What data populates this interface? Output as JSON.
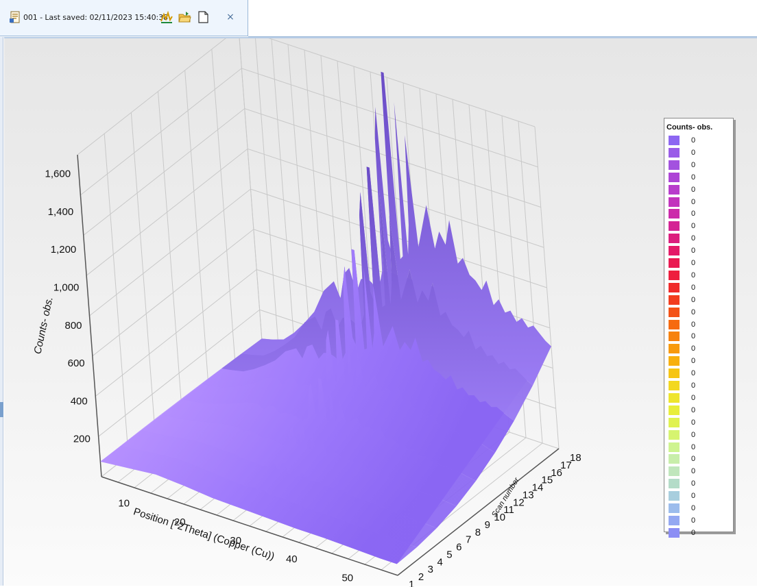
{
  "tab": {
    "title": "001 - Last saved: 02/11/2023 15:40:38",
    "close_label": "×",
    "icons": [
      "document-icon",
      "chart-icon",
      "folder-open-icon",
      "page-icon"
    ]
  },
  "chart_data": {
    "type": "surface",
    "xlabel": "Position [°2Theta] (Copper (Cu))",
    "ylabel": "Scan number",
    "zlabel": "Counts- obs.",
    "x_ticks": [
      "10",
      "20",
      "30",
      "40",
      "50"
    ],
    "y_ticks": [
      "1",
      "2",
      "3",
      "4",
      "5",
      "6",
      "7",
      "8",
      "9",
      "10",
      "11",
      "12",
      "13",
      "14",
      "15",
      "16",
      "17",
      "18"
    ],
    "z_ticks": [
      "200",
      "400",
      "600",
      "800",
      "1,000",
      "1,200",
      "1,400",
      "1,600"
    ],
    "xlim": [
      5,
      58
    ],
    "zlim": [
      0,
      1700
    ],
    "scan_range": [
      1,
      18
    ],
    "profile_scan_18": {
      "x": [
        5,
        7,
        9,
        11,
        13,
        15,
        17,
        19,
        20,
        21,
        22,
        23,
        24,
        25,
        26,
        27,
        28,
        28.5,
        29,
        29.5,
        30,
        30.5,
        31,
        31.5,
        32,
        32.5,
        33,
        33.5,
        34,
        35,
        36,
        37,
        38,
        39,
        40,
        41,
        42,
        43,
        44,
        45,
        46,
        47,
        48,
        49,
        50,
        51,
        52,
        53,
        54,
        55,
        56,
        57,
        58
      ],
      "counts": [
        60,
        75,
        95,
        150,
        220,
        300,
        430,
        500,
        420,
        560,
        600,
        480,
        560,
        580,
        560,
        520,
        640,
        1350,
        1520,
        820,
        760,
        1720,
        1720,
        740,
        760,
        1580,
        780,
        940,
        1420,
        840,
        960,
        1080,
        860,
        960,
        900,
        1040,
        820,
        860,
        780,
        760,
        720,
        780,
        660,
        700,
        640,
        660,
        610,
        640,
        600,
        620,
        590,
        560,
        540
      ]
    },
    "front_profile_scan_1": {
      "x": [
        5,
        10,
        15,
        20,
        25,
        30,
        35,
        40,
        45,
        50,
        55,
        58
      ],
      "counts": [
        80,
        95,
        110,
        100,
        85,
        80,
        75,
        70,
        70,
        65,
        60,
        60
      ]
    },
    "legend": {
      "title": "Counts- obs.",
      "labels": [
        "0",
        "0",
        "0",
        "0",
        "0",
        "0",
        "0",
        "0",
        "0",
        "0",
        "0",
        "0",
        "0",
        "0",
        "0",
        "0",
        "0",
        "0",
        "0",
        "0",
        "0",
        "0",
        "0",
        "0",
        "0",
        "0",
        "0",
        "0",
        "0",
        "0",
        "0",
        "0",
        "0"
      ],
      "colors": [
        "#8d66f2",
        "#9a5ce8",
        "#a352df",
        "#ad44d6",
        "#b83ccc",
        "#c233bd",
        "#cc2aaa",
        "#d42394",
        "#dc1e7e",
        "#e41a68",
        "#ea1a52",
        "#ee1e3e",
        "#f02a2a",
        "#f23d1e",
        "#f45216",
        "#f66a10",
        "#f7820e",
        "#f89a0e",
        "#f8b00e",
        "#f6c514",
        "#f3d820",
        "#eee52c",
        "#e8ee3a",
        "#e0f250",
        "#d6f470",
        "#cef490",
        "#c8eeaa",
        "#c0e6bc",
        "#b4dcc8",
        "#a8cede",
        "#9cbcec",
        "#94a8f2",
        "#8c8ef4"
      ]
    },
    "surface_colors": {
      "light": "#b391ff",
      "mid": "#9a73f7",
      "dark": "#6b4ec0"
    },
    "grid": true
  }
}
